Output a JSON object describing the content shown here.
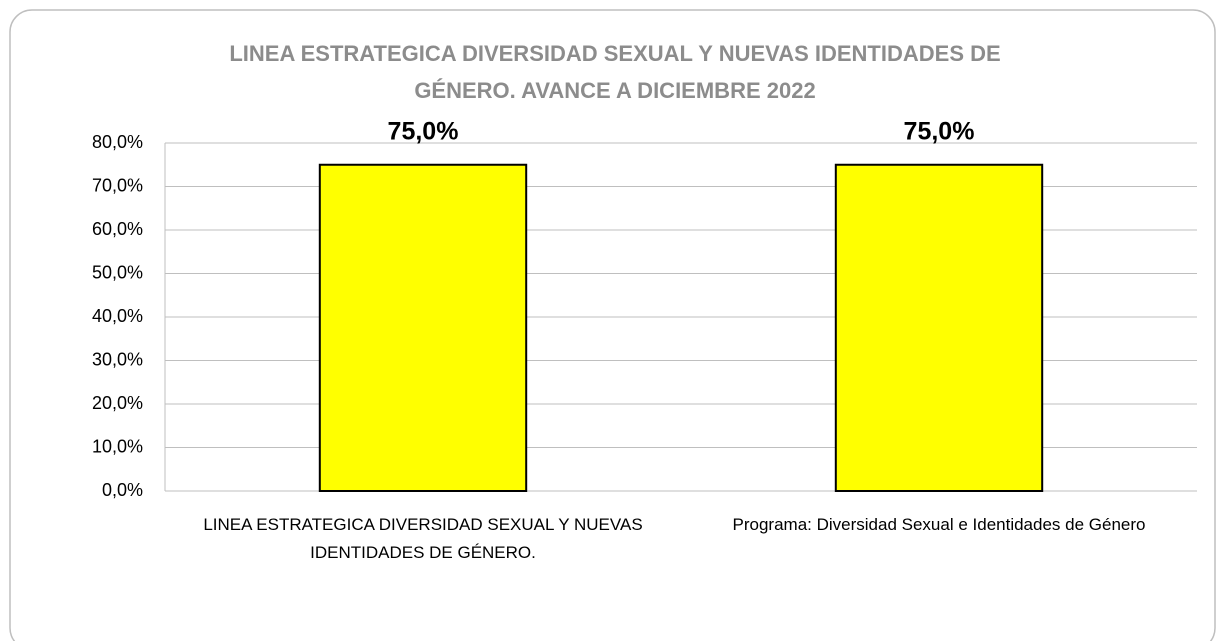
{
  "chart_data": {
    "type": "bar",
    "title": [
      "LINEA ESTRATEGICA DIVERSIDAD SEXUAL Y NUEVAS IDENTIDADES DE",
      "GÉNERO. AVANCE A DICIEMBRE 2022"
    ],
    "categories": [
      "LINEA ESTRATEGICA DIVERSIDAD SEXUAL Y NUEVAS IDENTIDADES DE GÉNERO.",
      "Programa: Diversidad Sexual e Identidades de Género"
    ],
    "values": [
      75,
      75
    ],
    "value_labels": [
      "75,0%",
      "75,0%"
    ],
    "color": "#ffff00",
    "ylim": [
      0,
      80
    ],
    "yticks": [
      {
        "value": 0,
        "label": "0,0%"
      },
      {
        "value": 10,
        "label": "10,0%"
      },
      {
        "value": 20,
        "label": "20,0%"
      },
      {
        "value": 30,
        "label": "30,0%"
      },
      {
        "value": 40,
        "label": "40,0%"
      },
      {
        "value": 50,
        "label": "50,0%"
      },
      {
        "value": 60,
        "label": "60,0%"
      },
      {
        "value": 70,
        "label": "70,0%"
      },
      {
        "value": 80,
        "label": "80,0%"
      }
    ],
    "grid": true
  }
}
